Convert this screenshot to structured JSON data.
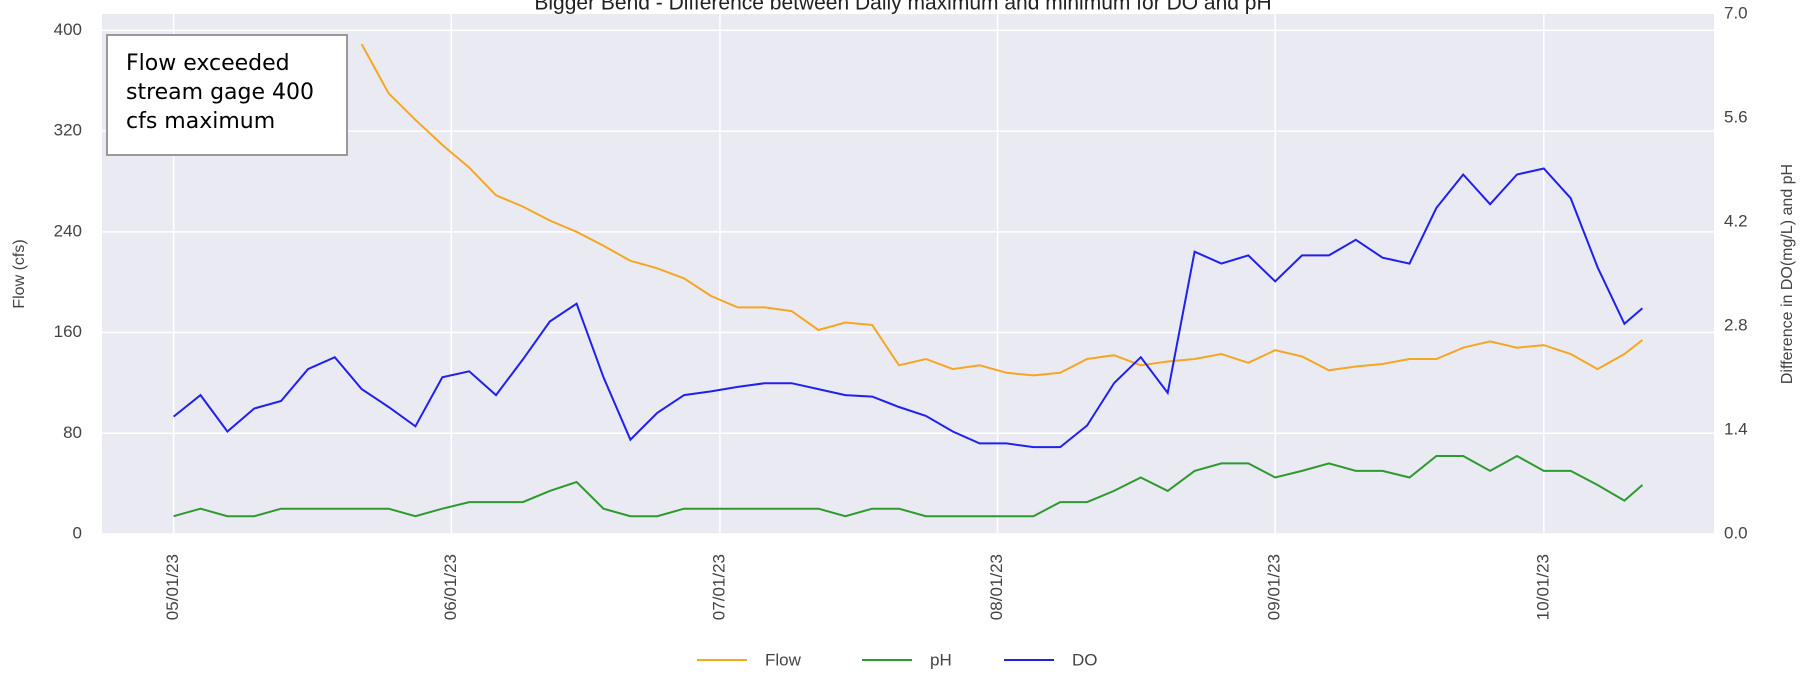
{
  "chart_data": {
    "type": "line",
    "title": "Bigger Bend - Difference between Daily maximum and minimum for DO and pH",
    "ylabel": "Flow (cfs)",
    "y2label": "Difference in DO(mg/L) and pH",
    "annotation": [
      "Flow exceeded",
      "stream gage 400",
      "cfs maximum"
    ],
    "x": [
      "05/01/23",
      "05/04/23",
      "05/07/23",
      "05/10/23",
      "05/13/23",
      "05/16/23",
      "05/19/23",
      "05/22/23",
      "05/25/23",
      "05/28/23",
      "05/31/23",
      "06/03/23",
      "06/06/23",
      "06/09/23",
      "06/12/23",
      "06/15/23",
      "06/18/23",
      "06/21/23",
      "06/24/23",
      "06/27/23",
      "06/30/23",
      "07/03/23",
      "07/06/23",
      "07/09/23",
      "07/12/23",
      "07/15/23",
      "07/18/23",
      "07/21/23",
      "07/24/23",
      "07/27/23",
      "07/30/23",
      "08/02/23",
      "08/05/23",
      "08/08/23",
      "08/11/23",
      "08/14/23",
      "08/17/23",
      "08/20/23",
      "08/23/23",
      "08/26/23",
      "08/29/23",
      "09/01/23",
      "09/04/23",
      "09/07/23",
      "09/10/23",
      "09/13/23",
      "09/16/23",
      "09/19/23",
      "09/22/23",
      "09/25/23",
      "09/28/23",
      "10/01/23",
      "10/04/23",
      "10/07/23",
      "10/10/23",
      "10/12/23"
    ],
    "series": [
      {
        "name": "Flow",
        "color": "#f5a623",
        "axis": "y",
        "values": [
          null,
          null,
          null,
          null,
          null,
          null,
          null,
          389,
          350,
          329,
          309,
          291,
          269,
          260,
          249,
          240,
          229,
          217,
          211,
          203,
          189,
          180,
          180,
          177,
          162,
          168,
          166,
          134,
          139,
          131,
          134,
          128,
          126,
          128,
          139,
          142,
          134,
          137,
          139,
          143,
          136,
          146,
          141,
          130,
          133,
          135,
          139,
          139,
          148,
          153,
          148,
          150,
          143,
          131,
          143,
          154
        ]
      },
      {
        "name": "pH",
        "color": "#2e9a2e",
        "axis": "y2",
        "values": [
          0.24,
          0.34,
          0.24,
          0.24,
          0.34,
          0.34,
          0.34,
          0.34,
          0.34,
          0.24,
          0.34,
          0.43,
          0.43,
          0.43,
          0.58,
          0.7,
          0.34,
          0.24,
          0.24,
          0.34,
          0.34,
          0.34,
          0.34,
          0.34,
          0.34,
          0.24,
          0.34,
          0.34,
          0.24,
          0.24,
          0.24,
          0.24,
          0.24,
          0.43,
          0.43,
          0.58,
          0.76,
          0.58,
          0.85,
          0.95,
          0.95,
          0.76,
          0.85,
          0.95,
          0.85,
          0.85,
          0.76,
          1.05,
          1.05,
          0.85,
          1.05,
          0.85,
          0.85,
          0.66,
          0.45,
          0.66
        ]
      },
      {
        "name": "DO",
        "color": "#2020f0",
        "axis": "y2",
        "values": [
          1.58,
          1.87,
          1.38,
          1.69,
          1.79,
          2.22,
          2.38,
          1.95,
          1.71,
          1.45,
          2.11,
          2.19,
          1.87,
          2.35,
          2.86,
          3.1,
          2.11,
          1.27,
          1.63,
          1.87,
          1.92,
          1.98,
          2.03,
          2.03,
          1.95,
          1.87,
          1.85,
          1.71,
          1.59,
          1.38,
          1.22,
          1.22,
          1.17,
          1.17,
          1.46,
          2.03,
          2.38,
          1.9,
          3.8,
          3.64,
          3.75,
          3.4,
          3.75,
          3.75,
          3.96,
          3.72,
          3.64,
          4.39,
          4.84,
          4.44,
          4.84,
          4.92,
          4.52,
          3.59,
          2.83,
          3.04
        ]
      }
    ],
    "xlim": [
      "04/23/23",
      "10/20/23"
    ],
    "xticks": [
      "05/01/23",
      "06/01/23",
      "07/01/23",
      "08/01/23",
      "09/01/23",
      "10/01/23"
    ],
    "ylim": [
      0,
      413
    ],
    "yticks": [
      0,
      80,
      160,
      240,
      320,
      400
    ],
    "y2lim": [
      0,
      7.0
    ],
    "y2ticks": [
      {
        "value": 0,
        "label": "0.0"
      },
      1.4,
      2.8,
      4.2,
      5.6,
      {
        "value": 7,
        "label": "7.0"
      }
    ],
    "grid": true,
    "legend": "bottom"
  }
}
